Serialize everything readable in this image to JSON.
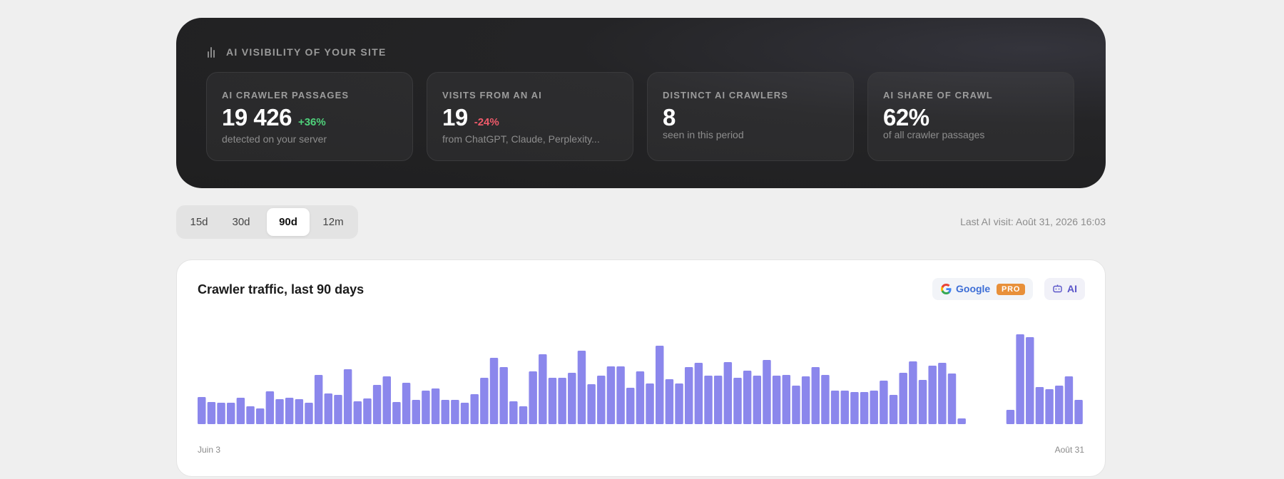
{
  "hero": {
    "title": "AI VISIBILITY OF YOUR SITE",
    "icon": "bar-chart-icon",
    "stats": [
      {
        "label": "AI CRAWLER PASSAGES",
        "value": "19 426",
        "delta": "+36%",
        "delta_trend": "up",
        "sub": "detected on your server"
      },
      {
        "label": "VISITS FROM AN AI",
        "value": "19",
        "delta": "-24%",
        "delta_trend": "down",
        "sub": "from ChatGPT, Claude, Perplexity..."
      },
      {
        "label": "DISTINCT AI CRAWLERS",
        "value": "8",
        "delta": "",
        "sub": "seen in this period"
      },
      {
        "label": "AI SHARE OF CRAWL",
        "value": "62%",
        "delta": "",
        "sub": "of all crawler passages"
      }
    ]
  },
  "periods": {
    "options": [
      "15d",
      "30d",
      "90d",
      "12m"
    ],
    "selected": "90d"
  },
  "last_visit": "Last AI visit: Août 31, 2026 16:03",
  "chart_card": {
    "title": "Crawler traffic, last 90 days",
    "google_button": {
      "label": "Google",
      "badge": "PRO",
      "icon": "google-icon"
    },
    "ai_button": {
      "label": "AI",
      "icon": "robot-icon"
    },
    "x_start_label": "Juin 3",
    "x_end_label": "Août 31"
  },
  "colors": {
    "bar": "#8b87ec",
    "delta_up": "#4fd17b",
    "delta_down": "#ef5a6a",
    "google_text": "#3d6ed6",
    "pro_badge": "#e8903a",
    "ai_text": "#5a55c9"
  },
  "chart_data": {
    "type": "bar",
    "title": "Crawler traffic, last 90 days",
    "x_range": [
      "Juin 3",
      "Août 31"
    ],
    "values": [
      38,
      31,
      30,
      30,
      37,
      25,
      22,
      46,
      35,
      37,
      35,
      30,
      69,
      43,
      41,
      77,
      32,
      36,
      55,
      67,
      31,
      58,
      34,
      47,
      50,
      34,
      34,
      30,
      42,
      65,
      93,
      80,
      32,
      25,
      74,
      98,
      65,
      65,
      72,
      103,
      56,
      68,
      81,
      81,
      51,
      74,
      57,
      110,
      63,
      57,
      80,
      86,
      68,
      68,
      87,
      65,
      75,
      68,
      90,
      68,
      69,
      54,
      67,
      80,
      69,
      47,
      47,
      45,
      45,
      47,
      61,
      41,
      72,
      88,
      62,
      82,
      86,
      71,
      8,
      0,
      0,
      0,
      0,
      20,
      126,
      122,
      52,
      49,
      54,
      67,
      34
    ],
    "ylim": [
      0,
      130
    ],
    "grid": false,
    "legend": "none"
  }
}
